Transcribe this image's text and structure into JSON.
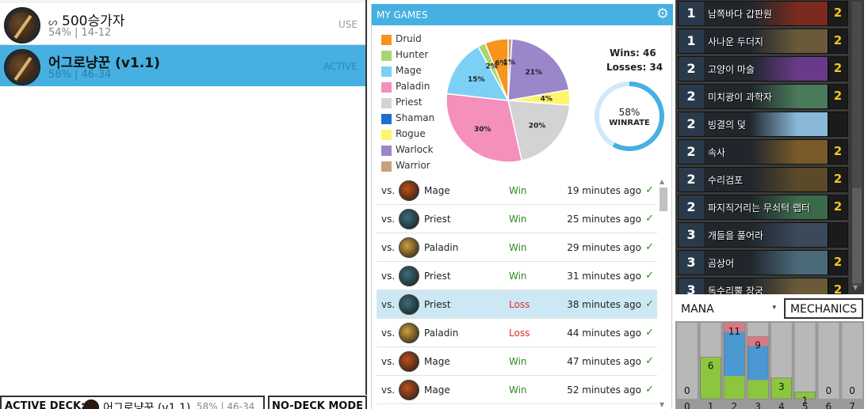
{
  "decks": [
    {
      "name": "500승가자",
      "stats": "54% | 14-12",
      "tag": "USE"
    },
    {
      "name": "어그로냥꾼 (v1.1)",
      "stats": "58% | 46-34",
      "tag": "ACTIVE"
    }
  ],
  "status_bar": {
    "active_label": "ACTIVE DECK:",
    "active_name": "어그로냥꾼 (v1.1)",
    "active_stats": "58% | 46-34",
    "nodeck_label": "NO-DECK MODE"
  },
  "my_games": {
    "title": "MY GAMES",
    "gear_icon": "gear-icon",
    "wins_label": "Wins: 46",
    "losses_label": "Losses: 34",
    "winrate_pct": "58%",
    "winrate_value": 0.58,
    "winrate_label": "WINRATE",
    "legend": [
      {
        "label": "Druid",
        "color": "#f7941d"
      },
      {
        "label": "Hunter",
        "color": "#a8d672"
      },
      {
        "label": "Mage",
        "color": "#7dd0f5"
      },
      {
        "label": "Paladin",
        "color": "#f58fbc"
      },
      {
        "label": "Priest",
        "color": "#d3d3d3"
      },
      {
        "label": "Shaman",
        "color": "#1b6fd1"
      },
      {
        "label": "Rogue",
        "color": "#fff56b"
      },
      {
        "label": "Warlock",
        "color": "#9b86c9"
      },
      {
        "label": "Warrior",
        "color": "#c8a07a"
      }
    ],
    "games": [
      {
        "vs": "vs.",
        "class": "Mage",
        "result": "Win",
        "time": "19 minutes ago",
        "check": "✓",
        "icon_color": "#c0501a",
        "selected": false
      },
      {
        "vs": "vs.",
        "class": "Priest",
        "result": "Win",
        "time": "25 minutes ago",
        "check": "✓",
        "icon_color": "#3a6e7a",
        "selected": false
      },
      {
        "vs": "vs.",
        "class": "Paladin",
        "result": "Win",
        "time": "29 minutes ago",
        "check": "✓",
        "icon_color": "#d2a03a",
        "selected": false
      },
      {
        "vs": "vs.",
        "class": "Priest",
        "result": "Win",
        "time": "31 minutes ago",
        "check": "✓",
        "icon_color": "#3a6e7a",
        "selected": false
      },
      {
        "vs": "vs.",
        "class": "Priest",
        "result": "Loss",
        "time": "38 minutes ago",
        "check": "✓",
        "icon_color": "#3a6e7a",
        "selected": true
      },
      {
        "vs": "vs.",
        "class": "Paladin",
        "result": "Loss",
        "time": "44 minutes ago",
        "check": "✓",
        "icon_color": "#d2a03a",
        "selected": false
      },
      {
        "vs": "vs.",
        "class": "Mage",
        "result": "Win",
        "time": "47 minutes ago",
        "check": "✓",
        "icon_color": "#c0501a",
        "selected": false
      },
      {
        "vs": "vs.",
        "class": "Mage",
        "result": "Win",
        "time": "52 minutes ago",
        "check": "✓",
        "icon_color": "#c0501a",
        "selected": false
      }
    ]
  },
  "chart_data": [
    {
      "type": "pie",
      "title": "",
      "slices": [
        {
          "label": "Warrior",
          "value": 1,
          "text": "1%",
          "color": "#c8a07a"
        },
        {
          "label": "Warlock",
          "value": 21,
          "text": "21%",
          "color": "#9b86c9"
        },
        {
          "label": "Rogue",
          "value": 4,
          "text": "4%",
          "color": "#fff56b"
        },
        {
          "label": "Priest",
          "value": 20,
          "text": "20%",
          "color": "#d3d3d3"
        },
        {
          "label": "Paladin",
          "value": 30,
          "text": "30%",
          "color": "#f58fbc"
        },
        {
          "label": "Mage",
          "value": 15,
          "text": "15%",
          "color": "#7dd0f5"
        },
        {
          "label": "Hunter",
          "value": 2,
          "text": "2%",
          "color": "#a8d672"
        },
        {
          "label": "Druid",
          "value": 6,
          "text": "6%",
          "color": "#f7941d"
        }
      ]
    },
    {
      "type": "bar",
      "title": "",
      "categories": [
        "0",
        "1",
        "2",
        "3",
        "4",
        "5",
        "6",
        "7"
      ],
      "values": [
        0,
        6,
        11,
        9,
        3,
        1,
        0,
        0
      ],
      "ylim": [
        0,
        11
      ]
    }
  ],
  "cards": [
    {
      "cost": "1",
      "name": "남쪽바다 갑판원",
      "count": "2",
      "art": "#7a2a1e"
    },
    {
      "cost": "1",
      "name": "사나운 두더지",
      "count": "2",
      "art": "#6b5a3a"
    },
    {
      "cost": "2",
      "name": "고양이 마술",
      "count": "2",
      "art": "#6a3a8a"
    },
    {
      "cost": "2",
      "name": "미치광이 과학자",
      "count": "2",
      "art": "#4a7a5a"
    },
    {
      "cost": "2",
      "name": "빙결의 덫",
      "count": "",
      "art": "#8ab8d8"
    },
    {
      "cost": "2",
      "name": "속사",
      "count": "2",
      "art": "#7a5a2a"
    },
    {
      "cost": "2",
      "name": "수리검포",
      "count": "2",
      "art": "#5a4a2a"
    },
    {
      "cost": "2",
      "name": "파지직거리는 무쇠턱 랩터",
      "count": "2",
      "art": "#3a6a4a"
    },
    {
      "cost": "3",
      "name": "개들을 풀어라",
      "count": "",
      "art": "#3a4a5a"
    },
    {
      "cost": "3",
      "name": "곰상어",
      "count": "2",
      "art": "#4a6a7a"
    },
    {
      "cost": "3",
      "name": "독수리뿔 장궁",
      "count": "2",
      "art": "#6a5a3a"
    }
  ],
  "mana_select": {
    "value": "MANA",
    "arrow": "▾"
  },
  "mechanics_label": "MECHANICS"
}
